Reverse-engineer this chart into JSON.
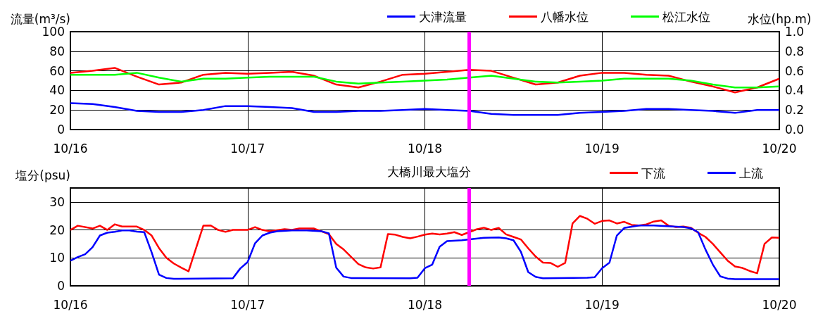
{
  "chart_data": [
    {
      "type": "line",
      "ylabel": "流量(m³/s)",
      "y2label": "水位(hp.m)",
      "x": [
        "--10-16T00:00",
        "--10-16T03:00",
        "--10-16T06:00",
        "--10-16T09:00",
        "--10-16T12:00",
        "--10-16T15:00",
        "--10-16T18:00",
        "--10-16T21:00",
        "--10-17T00:00",
        "--10-17T03:00",
        "--10-17T06:00",
        "--10-17T09:00",
        "--10-17T12:00",
        "--10-17T15:00",
        "--10-17T18:00",
        "--10-17T21:00",
        "--10-18T00:00",
        "--10-18T03:00",
        "--10-18T06:00",
        "--10-18T09:00",
        "--10-18T12:00",
        "--10-18T15:00",
        "--10-18T18:00",
        "--10-18T21:00",
        "--10-19T00:00",
        "--10-19T03:00",
        "--10-19T06:00",
        "--10-19T09:00",
        "--10-19T12:00",
        "--10-19T15:00",
        "--10-19T18:00",
        "--10-19T21:00",
        "--10-20T00:00"
      ],
      "series": [
        {
          "name": "大津流量",
          "color": "#0000ff",
          "values": [
            27,
            26,
            23,
            19,
            18,
            18,
            20,
            24,
            24,
            23,
            22,
            18,
            18,
            19,
            19,
            20,
            21,
            20,
            19,
            16,
            15,
            15,
            15,
            17,
            18,
            19,
            21,
            21,
            20,
            19,
            17,
            20,
            20
          ]
        },
        {
          "name": "八幡水位",
          "color": "#ff0000",
          "axis": "y2",
          "values": [
            0.58,
            0.6,
            0.63,
            0.54,
            0.46,
            0.48,
            0.56,
            0.58,
            0.57,
            0.58,
            0.59,
            0.55,
            0.46,
            0.43,
            0.49,
            0.56,
            0.57,
            0.59,
            0.61,
            0.6,
            0.53,
            0.46,
            0.48,
            0.55,
            0.58,
            0.58,
            0.56,
            0.55,
            0.49,
            0.44,
            0.38,
            0.43,
            0.52
          ]
        },
        {
          "name": "松江水位",
          "color": "#00ff00",
          "axis": "y2",
          "values": [
            0.56,
            0.56,
            0.56,
            0.58,
            0.53,
            0.49,
            0.52,
            0.52,
            0.53,
            0.54,
            0.54,
            0.54,
            0.49,
            0.47,
            0.48,
            0.49,
            0.5,
            0.51,
            0.53,
            0.55,
            0.52,
            0.49,
            0.48,
            0.49,
            0.5,
            0.52,
            0.52,
            0.52,
            0.5,
            0.46,
            0.43,
            0.43,
            0.44
          ]
        }
      ],
      "xlim": [
        "--10-16",
        "--10-20"
      ],
      "xticks": [
        {
          "value": "--10-16",
          "label": "10/16"
        },
        {
          "value": "--10-17",
          "label": "10/17"
        },
        {
          "value": "--10-18",
          "label": "10/18"
        },
        {
          "value": "--10-19",
          "label": "10/19"
        },
        {
          "value": "--10-20",
          "label": "10/20"
        }
      ],
      "ylim": [
        0,
        100
      ],
      "yticks": [
        0,
        20,
        40,
        60,
        80,
        100
      ],
      "y2lim": [
        0,
        1
      ],
      "y2ticks": [
        {
          "value": 0,
          "label": "0.0"
        },
        {
          "value": 0.2,
          "label": "0.2"
        },
        {
          "value": 0.4,
          "label": "0.4"
        },
        {
          "value": 0.6,
          "label": "0.6"
        },
        {
          "value": 0.8,
          "label": "0.8"
        },
        {
          "value": 1,
          "label": "1.0"
        }
      ],
      "ref_lines": [
        {
          "axis": "x",
          "value": "--10-18T06:00",
          "color": "#ff00ff"
        }
      ],
      "grid": true,
      "legend": "top right",
      "marker": "none",
      "line_style": "solid"
    },
    {
      "type": "line",
      "title": "大橋川最大塩分",
      "ylabel": "塩分(psu)",
      "series": [
        {
          "name": "下流",
          "color": "#ff0000",
          "x": [
            "--10-16T00:00",
            "--10-16T01:00",
            "--10-16T03:00",
            "--10-16T04:00",
            "--10-16T05:00",
            "--10-16T06:00",
            "--10-16T07:00",
            "--10-16T09:00",
            "--10-16T10:00",
            "--10-16T11:00",
            "--10-16T12:00",
            "--10-16T13:00",
            "--10-16T14:00",
            "--10-16T15:00",
            "--10-16T16:00",
            "--10-16T18:00",
            "--10-16T19:00",
            "--10-16T20:00",
            "--10-16T21:00",
            "--10-16T22:00",
            "--10-17T00:00",
            "--10-17T01:00",
            "--10-17T02:00",
            "--10-17T03:00",
            "--10-17T05:00",
            "--10-17T06:00",
            "--10-17T07:00",
            "--10-17T09:00",
            "--10-17T10:00",
            "--10-17T11:00",
            "--10-17T12:00",
            "--10-17T13:00",
            "--10-17T15:00",
            "--10-17T16:00",
            "--10-17T17:00",
            "--10-17T18:00",
            "--10-17T19:00",
            "--10-17T20:00",
            "--10-17T21:00",
            "--10-17T22:00",
            "--10-17T23:00",
            "--10-18T00:00",
            "--10-18T01:00",
            "--10-18T02:00",
            "--10-18T03:00",
            "--10-18T04:00",
            "--10-18T05:00",
            "--10-18T06:00",
            "--10-18T07:00",
            "--10-18T08:00",
            "--10-18T09:00",
            "--10-18T10:00",
            "--10-18T11:00",
            "--10-18T12:00",
            "--10-18T13:00",
            "--10-18T14:00",
            "--10-18T15:00",
            "--10-18T16:00",
            "--10-18T17:00",
            "--10-18T18:00",
            "--10-18T19:00",
            "--10-18T20:00",
            "--10-18T21:00",
            "--10-18T22:00",
            "--10-18T23:00",
            "--10-19T00:00",
            "--10-19T01:00",
            "--10-19T02:00",
            "--10-19T03:00",
            "--10-19T04:00",
            "--10-19T05:00",
            "--10-19T06:00",
            "--10-19T07:00",
            "--10-19T08:00",
            "--10-19T09:00",
            "--10-19T10:00",
            "--10-19T11:00",
            "--10-19T12:00",
            "--10-19T13:00",
            "--10-19T14:00",
            "--10-19T15:00",
            "--10-19T16:00",
            "--10-19T17:00",
            "--10-19T18:00",
            "--10-19T19:00",
            "--10-19T20:00",
            "--10-19T21:00",
            "--10-19T22:00",
            "--10-19T23:00",
            "--10-20T00:00"
          ],
          "values": [
            20,
            21.5,
            20.5,
            21.5,
            20,
            22,
            21.2,
            21.2,
            20,
            18,
            13.5,
            10,
            8,
            6.5,
            5.2,
            21.5,
            21.6,
            20,
            19.3,
            20,
            20,
            21,
            20,
            19.5,
            20.3,
            20,
            20.5,
            20.5,
            19.5,
            18.5,
            15,
            13,
            7.8,
            6.6,
            6.2,
            6.6,
            18.5,
            18.3,
            17.5,
            17,
            17.6,
            18.3,
            18.7,
            18.4,
            18.7,
            19.2,
            18.2,
            19.2,
            20.2,
            20.8,
            20,
            20.7,
            18.4,
            17.5,
            16.6,
            13.4,
            10.5,
            8.3,
            8.2,
            6.8,
            8.2,
            22.3,
            25,
            24,
            22.2,
            23.2,
            23.4,
            22.3,
            22.9,
            21.8,
            21.6,
            22,
            23,
            23.4,
            21.5,
            21,
            21.2,
            20.8,
            19,
            17.5,
            15,
            12,
            9,
            6.9,
            6.4,
            5.3,
            4.5,
            15,
            17.3,
            17.2
          ]
        },
        {
          "name": "上流",
          "color": "#0000ff",
          "x": [
            "--10-16T00:00",
            "--10-16T01:00",
            "--10-16T02:00",
            "--10-16T03:00",
            "--10-16T04:00",
            "--10-16T05:00",
            "--10-16T06:00",
            "--10-16T07:00",
            "--10-16T08:00",
            "--10-16T09:00",
            "--10-16T10:00",
            "--10-16T11:00",
            "--10-16T12:00",
            "--10-16T13:00",
            "--10-16T14:00",
            "--10-16T22:00",
            "--10-16T23:00",
            "--10-17T00:00",
            "--10-17T01:00",
            "--10-17T02:00",
            "--10-17T03:00",
            "--10-17T04:00",
            "--10-17T06:00",
            "--10-17T08:00",
            "--10-17T10:00",
            "--10-17T11:00",
            "--10-17T12:00",
            "--10-17T13:00",
            "--10-17T14:00",
            "--10-17T22:00",
            "--10-17T23:00",
            "--10-18T00:00",
            "--10-18T01:00",
            "--10-18T02:00",
            "--10-18T03:00",
            "--10-18T05:00",
            "--10-18T08:00",
            "--10-18T10:00",
            "--10-18T11:00",
            "--10-18T12:00",
            "--10-18T13:00",
            "--10-18T14:00",
            "--10-18T15:00",
            "--10-18T16:00",
            "--10-18T22:00",
            "--10-18T23:00",
            "--10-19T00:00",
            "--10-19T01:00",
            "--10-19T02:00",
            "--10-19T03:00",
            "--10-19T05:00",
            "--10-19T07:00",
            "--10-19T11:00",
            "--10-19T12:00",
            "--10-19T13:00",
            "--10-19T14:00",
            "--10-19T15:00",
            "--10-19T16:00",
            "--10-19T17:00",
            "--10-19T18:00",
            "--10-20T00:00"
          ],
          "values": [
            9,
            10.3,
            11.3,
            13.8,
            18,
            19,
            19.3,
            19.8,
            19.8,
            19.4,
            19.2,
            12,
            4,
            2.8,
            2.5,
            2.7,
            6.2,
            8.5,
            15.2,
            18,
            19,
            19.5,
            19.8,
            19.8,
            19.5,
            18.8,
            6.5,
            3.3,
            2.8,
            2.7,
            2.9,
            6.3,
            7.6,
            14,
            16,
            16.3,
            17.2,
            17.3,
            17,
            16.3,
            12.2,
            4.9,
            3.2,
            2.7,
            2.9,
            3.1,
            6.3,
            8.3,
            18,
            20.7,
            21.6,
            21.6,
            21,
            20.6,
            19.2,
            13,
            7.6,
            3.4,
            2.6,
            2.4,
            2.4
          ]
        }
      ],
      "xlim": [
        "--10-16",
        "--10-20"
      ],
      "xticks": [
        {
          "value": "--10-16",
          "label": "10/16"
        },
        {
          "value": "--10-17",
          "label": "10/17"
        },
        {
          "value": "--10-18",
          "label": "10/18"
        },
        {
          "value": "--10-19",
          "label": "10/19"
        },
        {
          "value": "--10-20",
          "label": "10/20"
        }
      ],
      "ylim": [
        0,
        35
      ],
      "yticks": [
        0,
        10,
        20,
        30
      ],
      "ref_lines": [
        {
          "axis": "x",
          "value": "--10-18T06:00",
          "color": "#ff00ff"
        }
      ],
      "grid": true,
      "legend": "top right",
      "marker": "none",
      "line_style": "solid"
    }
  ]
}
